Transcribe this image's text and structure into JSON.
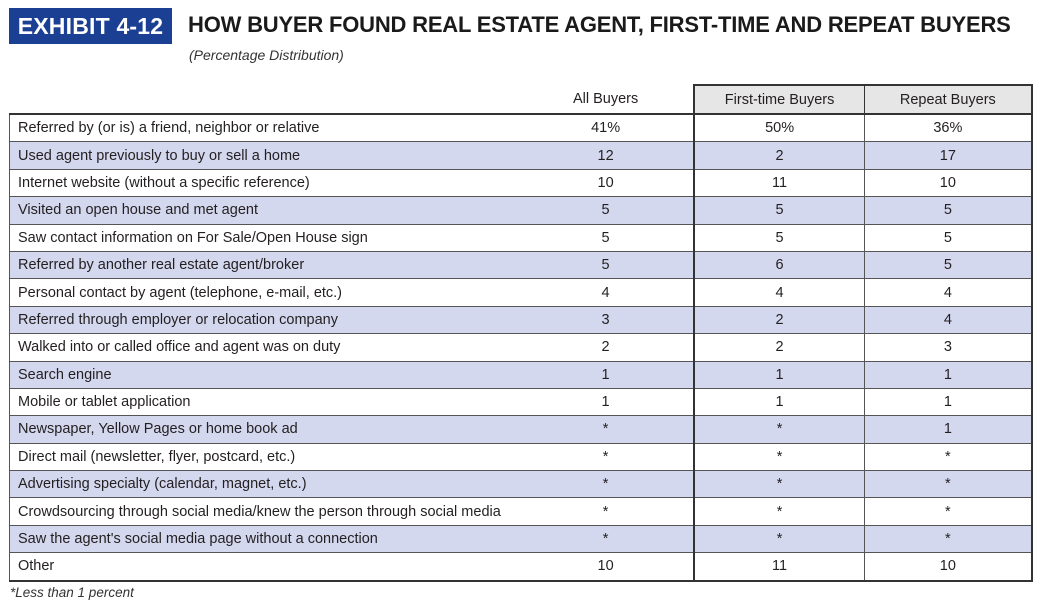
{
  "exhibit": {
    "badge": "EXHIBIT 4-12",
    "title": "HOW BUYER FOUND REAL ESTATE AGENT, FIRST-TIME AND REPEAT BUYERS",
    "subtitle": "(Percentage Distribution)",
    "footnote": "*Less than 1 percent"
  },
  "colors": {
    "badge_bg": "#1b3f93",
    "row_shade": "#d4d8ef",
    "header_shade": "#e6e6e6"
  },
  "chart_data": {
    "type": "table",
    "columns": [
      "",
      "All Buyers",
      "First-time Buyers",
      "Repeat Buyers"
    ],
    "rows": [
      [
        "Referred by (or is) a friend, neighbor or relative",
        "41%",
        "50%",
        "36%"
      ],
      [
        "Used agent previously to buy or sell a home",
        "12",
        "2",
        "17"
      ],
      [
        "Internet website (without a specific reference)",
        "10",
        "11",
        "10"
      ],
      [
        "Visited an open house and met agent",
        "5",
        "5",
        "5"
      ],
      [
        "Saw contact information on For Sale/Open House sign",
        "5",
        "5",
        "5"
      ],
      [
        "Referred by another real estate agent/broker",
        "5",
        "6",
        "5"
      ],
      [
        "Personal contact by agent (telephone, e-mail, etc.)",
        "4",
        "4",
        "4"
      ],
      [
        "Referred through employer or relocation company",
        "3",
        "2",
        "4"
      ],
      [
        "Walked into or called office and agent was on duty",
        "2",
        "2",
        "3"
      ],
      [
        "Search engine",
        "1",
        "1",
        "1"
      ],
      [
        "Mobile or tablet application",
        "1",
        "1",
        "1"
      ],
      [
        "Newspaper, Yellow Pages or home book ad",
        "*",
        "*",
        "1"
      ],
      [
        "Direct mail (newsletter, flyer, postcard, etc.)",
        "*",
        "*",
        "*"
      ],
      [
        "Advertising specialty (calendar, magnet, etc.)",
        "*",
        "*",
        "*"
      ],
      [
        "Crowdsourcing through social media/knew the person through social media",
        "*",
        "*",
        "*"
      ],
      [
        "Saw the agent's social media page without a connection",
        "*",
        "*",
        "*"
      ],
      [
        "Other",
        "10",
        "11",
        "10"
      ]
    ]
  }
}
